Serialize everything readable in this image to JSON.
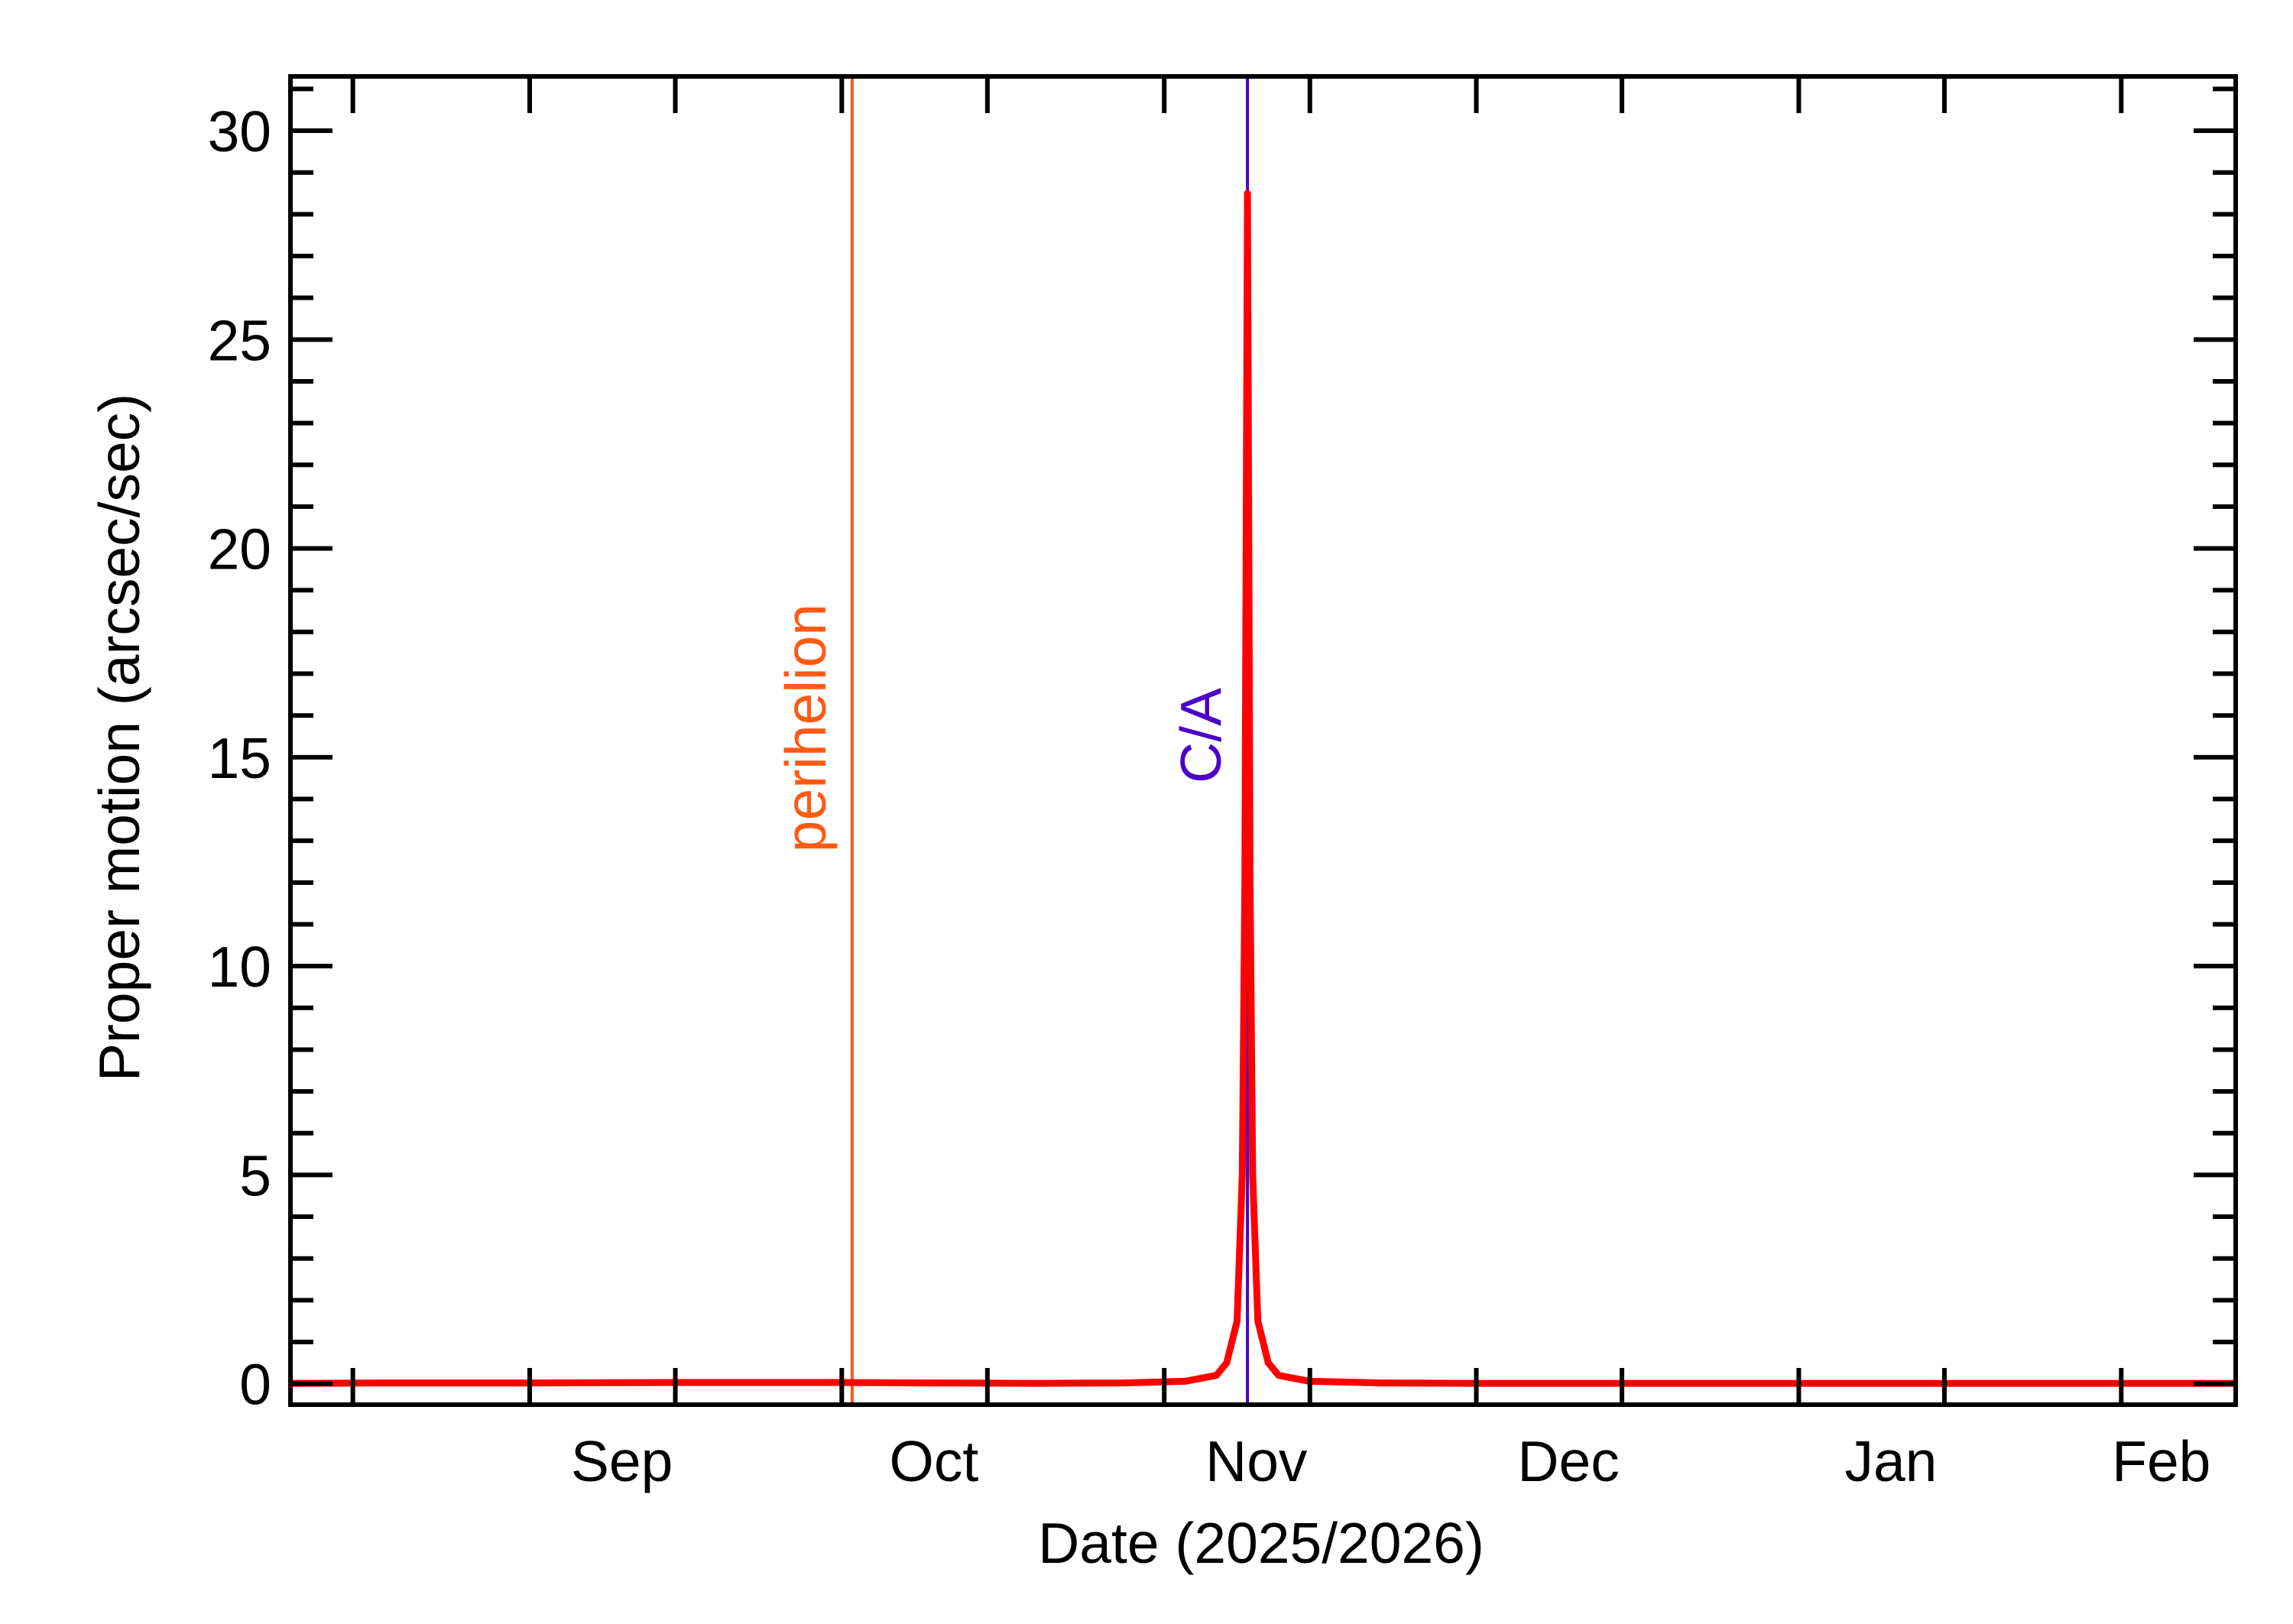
{
  "chart_data": {
    "type": "line",
    "title": "",
    "xlabel": "Date (2025/2026)",
    "ylabel": "Proper motion (arcsec/sec)",
    "xlim": [
      "2025-08-09",
      "2026-02-12"
    ],
    "ylim": [
      -0.5,
      31.3
    ],
    "x_ticks": [
      {
        "date": "2025-09-01",
        "label": "Sep"
      },
      {
        "date": "2025-10-01",
        "label": "Oct"
      },
      {
        "date": "2025-11-01",
        "label": "Nov"
      },
      {
        "date": "2025-12-01",
        "label": "Dec"
      },
      {
        "date": "2026-01-01",
        "label": "Jan"
      },
      {
        "date": "2026-02-01",
        "label": "Feb"
      }
    ],
    "y_ticks": [
      0,
      5,
      10,
      15,
      20,
      25,
      30
    ],
    "grid": false,
    "series": [
      {
        "color": "#ff0000",
        "points": [
          [
            "2025-08-09",
            0.01
          ],
          [
            "2025-08-20",
            0.02
          ],
          [
            "2025-09-01",
            0.02
          ],
          [
            "2025-09-15",
            0.03
          ],
          [
            "2025-10-01",
            0.03
          ],
          [
            "2025-10-10",
            0.02
          ],
          [
            "2025-10-20",
            0.01
          ],
          [
            "2025-10-28",
            0.02
          ],
          [
            "2025-11-03",
            0.06
          ],
          [
            "2025-11-06",
            0.2
          ],
          [
            "2025-11-07",
            0.5
          ],
          [
            "2025-11-08",
            1.5
          ],
          [
            "2025-11-08T12:00",
            5.0
          ],
          [
            "2025-11-08T18:00",
            12.0
          ],
          [
            "2025-11-09T00:00",
            28.5
          ],
          [
            "2025-11-09T06:00",
            12.0
          ],
          [
            "2025-11-09T12:00",
            5.0
          ],
          [
            "2025-11-10",
            1.5
          ],
          [
            "2025-11-11",
            0.5
          ],
          [
            "2025-11-12",
            0.2
          ],
          [
            "2025-11-15",
            0.06
          ],
          [
            "2025-11-22",
            0.02
          ],
          [
            "2025-12-01",
            0.01
          ],
          [
            "2025-12-15",
            0.01
          ],
          [
            "2026-01-01",
            0.01
          ],
          [
            "2026-01-15",
            0.01
          ],
          [
            "2026-02-01",
            0.01
          ],
          [
            "2026-02-12",
            0.01
          ]
        ]
      }
    ],
    "annotations": [
      {
        "name": "perihelion",
        "label": "perihelion",
        "date": "2025-10-02",
        "color": "#ff5a14"
      },
      {
        "name": "closest-approach",
        "label": "C/A",
        "date": "2025-11-09",
        "color": "#4b00c8"
      }
    ]
  }
}
